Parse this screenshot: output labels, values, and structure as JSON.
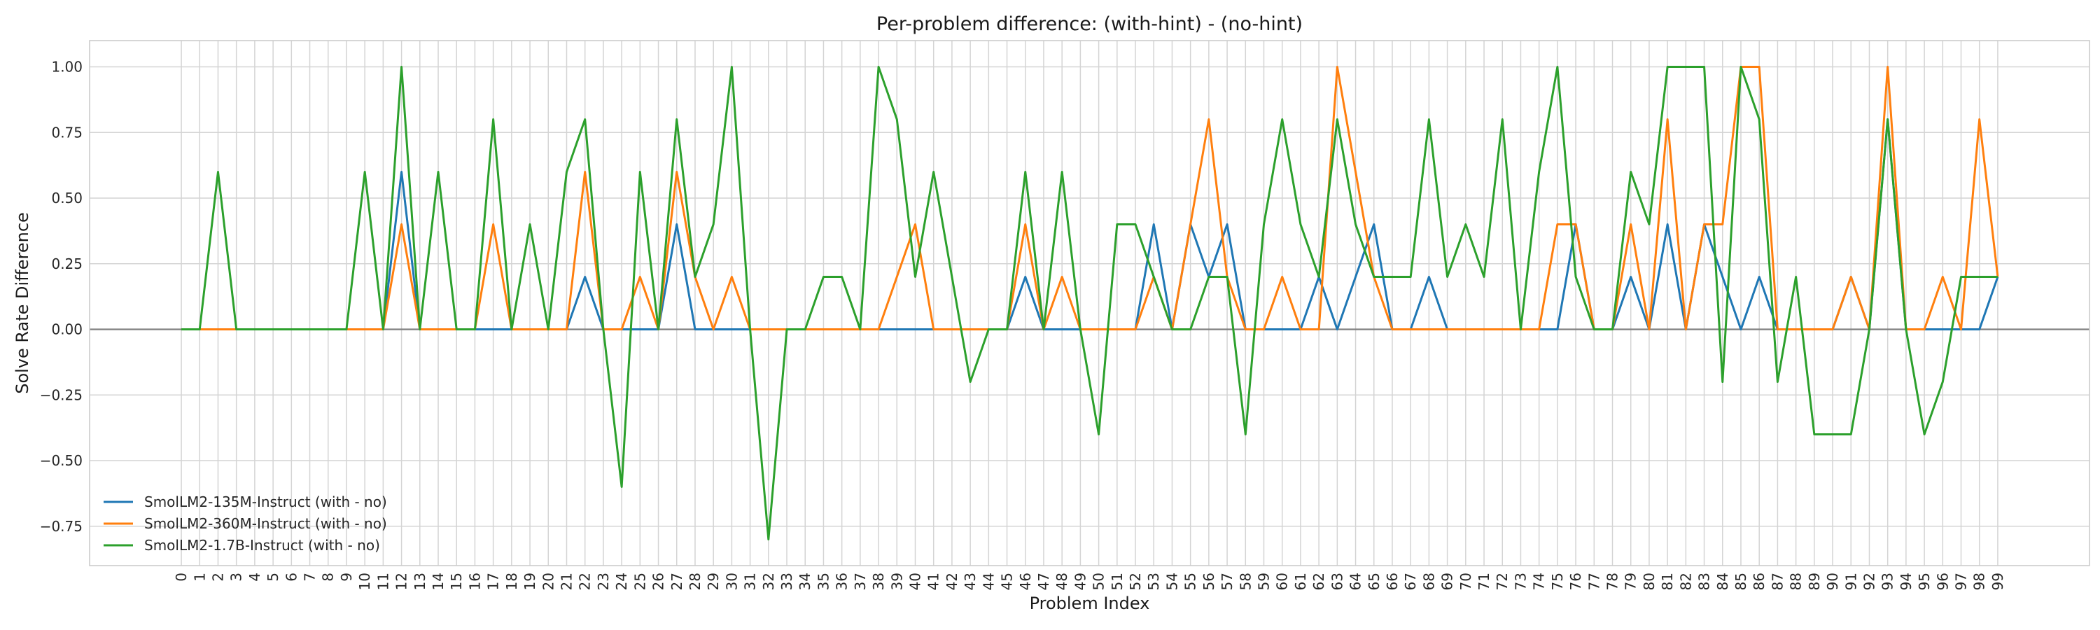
{
  "chart_data": {
    "type": "line",
    "title": "Per-problem difference: (with-hint) - (no-hint)",
    "xlabel": "Problem Index",
    "ylabel": "Solve Rate Difference",
    "xlim": [
      -5,
      104
    ],
    "ylim": [
      -0.9,
      1.1
    ],
    "yticks": [
      -0.75,
      -0.5,
      -0.25,
      0.0,
      0.25,
      0.5,
      0.75,
      1.0
    ],
    "ytick_labels": [
      "−0.75",
      "−0.50",
      "−0.25",
      "0.00",
      "0.25",
      "0.50",
      "0.75",
      "1.00"
    ],
    "grid": true,
    "zero_line": true,
    "legend_position": "lower-left",
    "x": [
      0,
      1,
      2,
      3,
      4,
      5,
      6,
      7,
      8,
      9,
      10,
      11,
      12,
      13,
      14,
      15,
      16,
      17,
      18,
      19,
      20,
      21,
      22,
      23,
      24,
      25,
      26,
      27,
      28,
      29,
      30,
      31,
      32,
      33,
      34,
      35,
      36,
      37,
      38,
      39,
      40,
      41,
      42,
      43,
      44,
      45,
      46,
      47,
      48,
      49,
      50,
      51,
      52,
      53,
      54,
      55,
      56,
      57,
      58,
      59,
      60,
      61,
      62,
      63,
      64,
      65,
      66,
      67,
      68,
      69,
      70,
      71,
      72,
      73,
      74,
      75,
      76,
      77,
      78,
      79,
      80,
      81,
      82,
      83,
      84,
      85,
      86,
      87,
      88,
      89,
      90,
      91,
      92,
      93,
      94,
      95,
      96,
      97,
      98,
      99
    ],
    "series": [
      {
        "name": "SmolLM2-135M-Instruct (with - no)",
        "color": "#1f77b4",
        "values": [
          0,
          0,
          0,
          0,
          0,
          0,
          0,
          0,
          0,
          0,
          0,
          0,
          0.6,
          0,
          0,
          0,
          0,
          0,
          0,
          0,
          0,
          0,
          0.2,
          0,
          0,
          0,
          0,
          0.4,
          0,
          0,
          0,
          0,
          0,
          0,
          0,
          0,
          0,
          0,
          0,
          0,
          0,
          0,
          0,
          0,
          0,
          0,
          0.2,
          0,
          0,
          0,
          0,
          0,
          0,
          0.4,
          0,
          0.4,
          0.2,
          0.4,
          0,
          0,
          0,
          0,
          0.2,
          0,
          0.2,
          0.4,
          0,
          0,
          0.2,
          0,
          0,
          0,
          0,
          0,
          0,
          0,
          0.4,
          0,
          0,
          0.2,
          0,
          0.4,
          0,
          0.4,
          0.2,
          0,
          0.2,
          0,
          0,
          0,
          0,
          0.2,
          0,
          0.8,
          0,
          0,
          0,
          0,
          0,
          0.2
        ]
      },
      {
        "name": "SmolLM2-360M-Instruct (with - no)",
        "color": "#ff7f0e",
        "values": [
          0,
          0,
          0,
          0,
          0,
          0,
          0,
          0,
          0,
          0,
          0,
          0,
          0.4,
          0,
          0,
          0,
          0,
          0.4,
          0,
          0,
          0,
          0,
          0.6,
          0,
          0,
          0.2,
          0,
          0.6,
          0.2,
          0,
          0.2,
          0,
          0,
          0,
          0,
          0,
          0,
          0,
          0,
          0.2,
          0.4,
          0,
          0,
          0,
          0,
          0,
          0.4,
          0,
          0.2,
          0,
          0,
          0,
          0,
          0.2,
          0,
          0.4,
          0.8,
          0.2,
          0,
          0,
          0.2,
          0,
          0,
          1.0,
          0.6,
          0.2,
          0,
          0,
          0,
          0,
          0,
          0,
          0,
          0,
          0,
          0.4,
          0.4,
          0,
          0,
          0.4,
          0,
          0.8,
          0,
          0.4,
          0.4,
          1.0,
          1.0,
          0,
          0,
          0,
          0,
          0.2,
          0,
          1.0,
          0,
          0,
          0.2,
          0,
          0.8,
          0.2
        ]
      },
      {
        "name": "SmolLM2-1.7B-Instruct (with - no)",
        "color": "#2ca02c",
        "values": [
          0,
          0,
          0.6,
          0,
          0,
          0,
          0,
          0,
          0,
          0,
          0.6,
          0,
          1.0,
          0,
          0.6,
          0,
          0,
          0.8,
          0,
          0.4,
          0,
          0.6,
          0.8,
          0,
          -0.6,
          0.6,
          0,
          0.8,
          0.2,
          0.4,
          1.0,
          0,
          -0.8,
          0,
          0,
          0.2,
          0.2,
          0,
          1.0,
          0.8,
          0.2,
          0.6,
          0.2,
          -0.2,
          0,
          0,
          0.6,
          0,
          0.6,
          0,
          -0.4,
          0.4,
          0.4,
          0.2,
          0,
          0,
          0.2,
          0.2,
          -0.4,
          0.4,
          0.8,
          0.4,
          0.2,
          0.8,
          0.4,
          0.2,
          0.2,
          0.2,
          0.8,
          0.2,
          0.4,
          0.2,
          0.8,
          0,
          0.6,
          1.0,
          0.2,
          0,
          0,
          0.6,
          0.4,
          1.0,
          1.0,
          1.0,
          -0.2,
          1.0,
          0.8,
          -0.2,
          0.2,
          -0.4,
          -0.4,
          -0.4,
          0,
          0.8,
          0,
          -0.4,
          -0.2,
          0.2,
          0.2,
          0.2
        ]
      }
    ]
  }
}
